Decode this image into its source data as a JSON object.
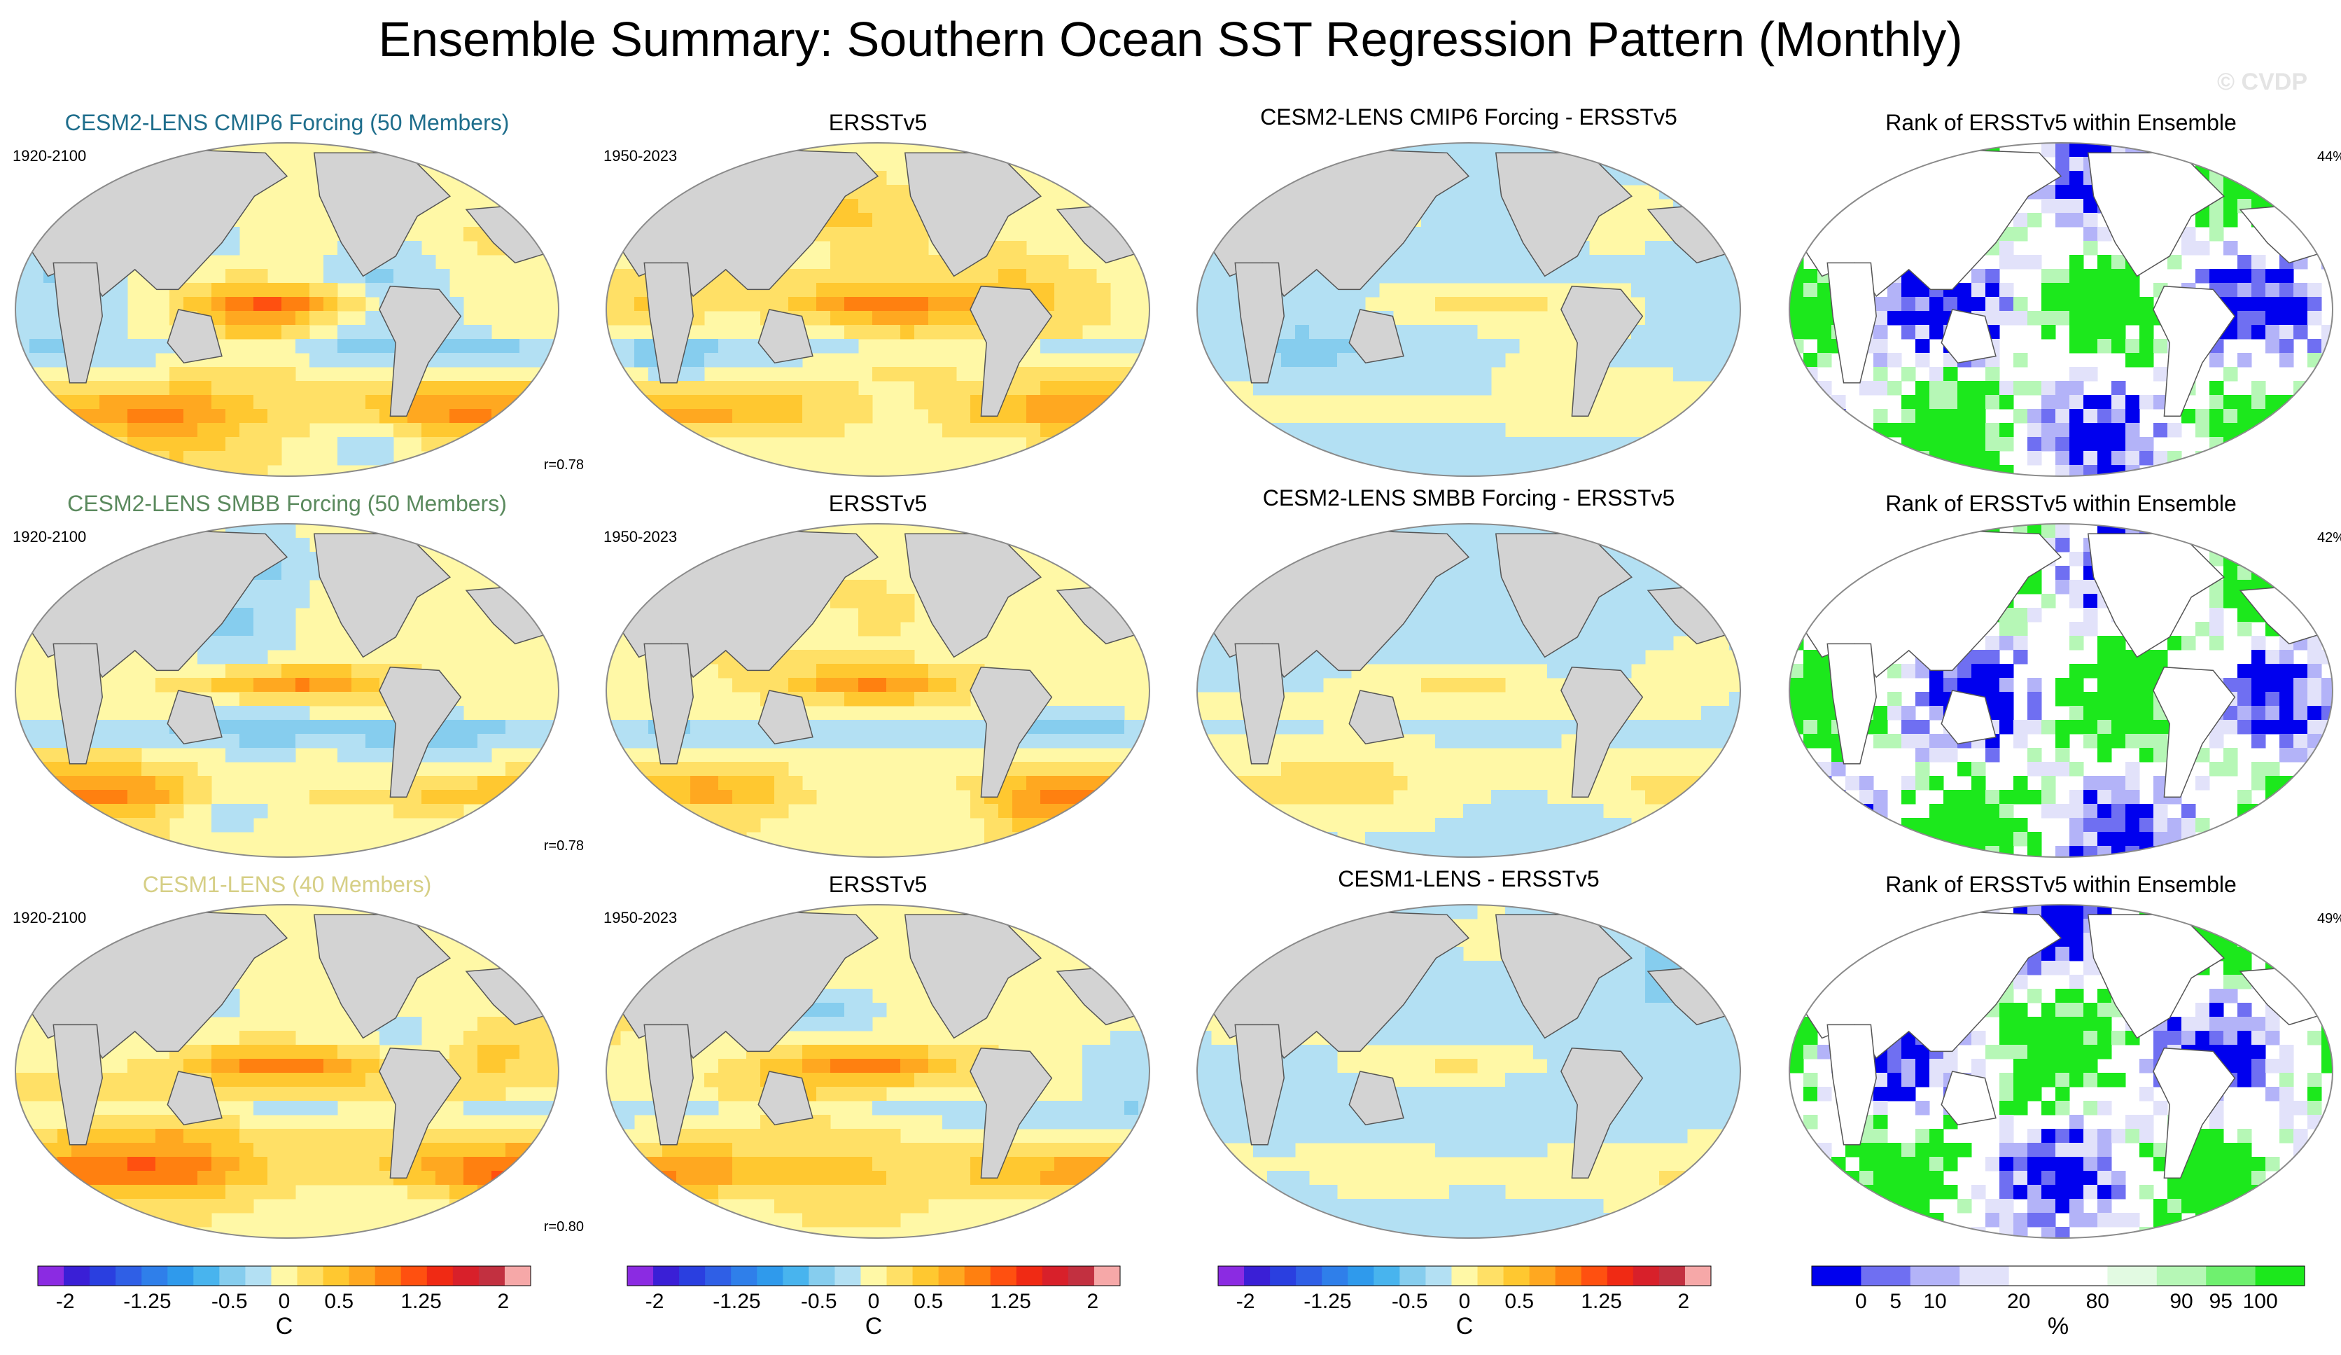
{
  "figure": {
    "title": "Ensemble Summary: Southern Ocean SST Regression Pattern (Monthly)",
    "watermark": "© CVDP"
  },
  "chart_data": {
    "type": "heatmap",
    "description_of_layout": "3 rows x 4 columns of global map panels with colorbars",
    "rows": [
      {
        "model_title": "CESM2-LENS CMIP6 Forcing (50 Members)",
        "model_title_color": "#1f6e8c",
        "model_period": "1920-2100",
        "pattern_correlation": "r=0.78",
        "obs_title": "ERSSTv5",
        "obs_period": "1950-2023",
        "diff_title": "CESM2-LENS CMIP6 Forcing - ERSSTv5",
        "rank_title": "Rank of ERSSTv5 within Ensemble",
        "rank_percent": "44%",
        "seed": 11
      },
      {
        "model_title": "CESM2-LENS SMBB Forcing (50 Members)",
        "model_title_color": "#5b8a5e",
        "model_period": "1920-2100",
        "pattern_correlation": "r=0.78",
        "obs_title": "ERSSTv5",
        "obs_period": "1950-2023",
        "diff_title": "CESM2-LENS SMBB Forcing - ERSSTv5",
        "rank_title": "Rank of ERSSTv5 within Ensemble",
        "rank_percent": "42%",
        "seed": 23
      },
      {
        "model_title": "CESM1-LENS (40 Members)",
        "model_title_color": "#d6cf86",
        "model_period": "1920-2100",
        "pattern_correlation": "r=0.80",
        "obs_title": "ERSSTv5",
        "obs_period": "1950-2023",
        "diff_title": "CESM1-LENS - ERSSTv5",
        "rank_title": "Rank of ERSSTv5 within Ensemble",
        "rank_percent": "49%",
        "seed": 37
      }
    ],
    "sst_colorbar": {
      "units": "C",
      "tick_labels": [
        "-2",
        "-1.25",
        "-0.5",
        "0",
        "0.5",
        "1.25",
        "2"
      ],
      "tick_values": [
        -2,
        -1.25,
        -0.5,
        0,
        0.5,
        1.25,
        2
      ],
      "levels": [
        -2.25,
        -2,
        -1.75,
        -1.5,
        -1.25,
        -1,
        -0.75,
        -0.5,
        -0.25,
        0,
        0.25,
        0.5,
        0.75,
        1,
        1.25,
        1.5,
        1.75,
        2,
        2.25
      ],
      "colors": [
        "#8b2be2",
        "#3a1fd6",
        "#2a3fe0",
        "#2f5fe6",
        "#2f7fea",
        "#2f9aec",
        "#48b4ee",
        "#86cdee",
        "#b3e0f3",
        "#fff8a6",
        "#ffe066",
        "#ffc830",
        "#ffa820",
        "#ff8010",
        "#ff5010",
        "#f02a14",
        "#d8202a",
        "#c23040",
        "#f6a8a8"
      ]
    },
    "rank_colorbar": {
      "units": "%",
      "tick_labels": [
        "0",
        "5",
        "10",
        "20",
        "80",
        "90",
        "95",
        "100"
      ],
      "tick_values": [
        0,
        5,
        10,
        20,
        80,
        90,
        95,
        100
      ],
      "colors": [
        "#0000ee",
        "#6f6ff2",
        "#b3b3f8",
        "#e2e2fa",
        "#ffffff",
        "#ffffff",
        "#e2fae2",
        "#b6f7b6",
        "#6ff06f",
        "#1ce81c"
      ]
    }
  }
}
